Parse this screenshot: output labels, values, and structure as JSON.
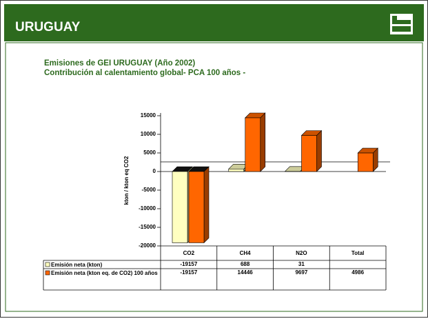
{
  "header": {
    "title": "URUGUAY"
  },
  "chart_data": {
    "type": "bar",
    "title": "Emisiones de GEI URUGUAY (Año 2002)",
    "subtitle": "Contribución al calentamiento global- PCA 100 años -",
    "ylabel": "kton / kton eq CO2",
    "categories": [
      "CO2",
      "CH4",
      "N2O",
      "Total"
    ],
    "series": [
      {
        "name": "Emisión neta (kton)",
        "color": "#ffffc0",
        "values": [
          -19157,
          688,
          31,
          null
        ]
      },
      {
        "name": "Emisión neta (kton eq. de CO2) 100 años",
        "color": "#ff6600",
        "values": [
          -19157,
          14446,
          9697,
          4986
        ]
      }
    ],
    "ylim": [
      -20000,
      15000
    ],
    "yticks": [
      -20000,
      -15000,
      -10000,
      -5000,
      0,
      5000,
      10000,
      15000
    ],
    "grid": false
  }
}
